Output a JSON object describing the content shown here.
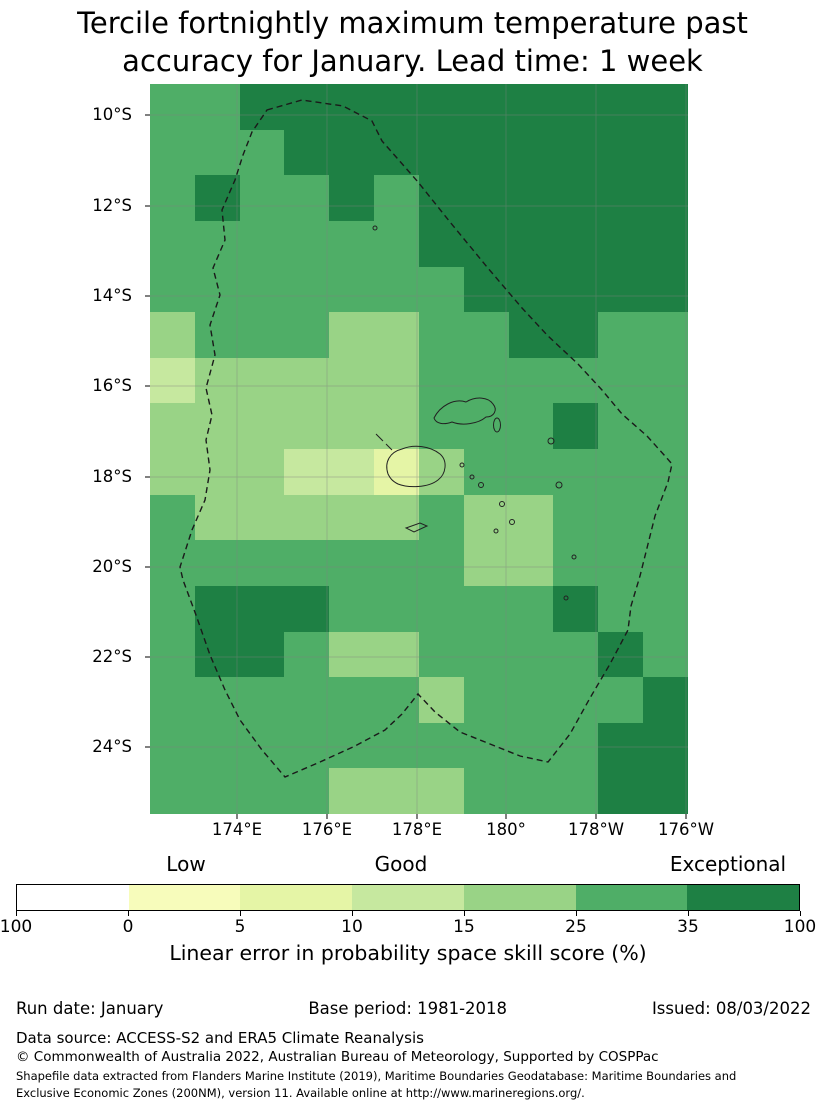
{
  "title": "Tercile fortnightly maximum temperature past accuracy for January. Lead time: 1 week",
  "map": {
    "lat_tick_labels": [
      "10°S",
      "12°S",
      "14°S",
      "16°S",
      "18°S",
      "20°S",
      "22°S",
      "24°S"
    ],
    "lon_tick_labels": [
      "174°E",
      "176°E",
      "178°E",
      "180°",
      "178°W",
      "176°W"
    ],
    "overlays": [
      "fiji-eez-dashed-boundary",
      "fiji-coastlines",
      "graticule-gridlines"
    ]
  },
  "colorbar": {
    "category_labels": [
      "Low",
      "Good",
      "Exceptional"
    ],
    "tick_labels": [
      "100",
      "0",
      "5",
      "10",
      "15",
      "25",
      "35",
      "100"
    ],
    "caption": "Linear error in probability space skill score (%)",
    "segment_colors": [
      "#ffffff",
      "#f7fcbb",
      "#e5f5a6",
      "#c6e89f",
      "#99d386",
      "#4fae67",
      "#1e8044"
    ]
  },
  "chart_data": {
    "type": "heatmap",
    "title": "Tercile fortnightly maximum temperature past accuracy for January. Lead time: 1 week",
    "colorbar_label": "Linear error in probability space skill score (%)",
    "skill_categories": [
      "Low",
      "Good",
      "Exceptional"
    ],
    "lon_cell_edges_deg_east": [
      172,
      173,
      174,
      175,
      176,
      177,
      178,
      179,
      180,
      181,
      182,
      183,
      184
    ],
    "lat_cell_edges_deg_south": [
      9.5,
      10.5,
      11.5,
      12.5,
      13.5,
      14.5,
      15.5,
      16.5,
      17.5,
      18.5,
      19.5,
      20.5,
      21.5,
      22.5,
      23.5,
      24.5,
      25.5
    ],
    "x_tick_labels": [
      "174°E",
      "176°E",
      "178°E",
      "180°",
      "178°W",
      "176°W"
    ],
    "y_tick_labels": [
      "10°S",
      "12°S",
      "14°S",
      "16°S",
      "18°S",
      "20°S",
      "22°S",
      "24°S"
    ],
    "value_bins_percent": [
      "<=0",
      "0-5",
      "5-10",
      "10-15",
      "15-25",
      "25-35",
      "35-100"
    ],
    "bin_colors": [
      "#ffffff",
      "#f7fcbb",
      "#e5f5a6",
      "#c6e89f",
      "#99d386",
      "#4fae67",
      "#1e8044"
    ],
    "grid_bin_index": [
      [
        5,
        5,
        6,
        6,
        6,
        6,
        6,
        6,
        6,
        6,
        6,
        6
      ],
      [
        5,
        5,
        5,
        6,
        6,
        6,
        6,
        6,
        6,
        6,
        6,
        6
      ],
      [
        5,
        6,
        5,
        5,
        6,
        5,
        6,
        6,
        6,
        6,
        6,
        6
      ],
      [
        5,
        5,
        5,
        5,
        5,
        5,
        6,
        6,
        6,
        6,
        6,
        6
      ],
      [
        5,
        5,
        5,
        5,
        5,
        5,
        5,
        6,
        6,
        6,
        6,
        6
      ],
      [
        4,
        5,
        5,
        5,
        4,
        4,
        5,
        5,
        6,
        6,
        5,
        5
      ],
      [
        3,
        4,
        4,
        4,
        4,
        4,
        5,
        5,
        5,
        5,
        5,
        5
      ],
      [
        4,
        4,
        4,
        4,
        4,
        4,
        5,
        5,
        5,
        6,
        5,
        5
      ],
      [
        4,
        4,
        4,
        3,
        3,
        2,
        4,
        5,
        5,
        5,
        5,
        5
      ],
      [
        5,
        4,
        4,
        4,
        4,
        4,
        5,
        4,
        4,
        5,
        5,
        5
      ],
      [
        5,
        5,
        5,
        5,
        5,
        5,
        5,
        4,
        4,
        5,
        5,
        5
      ],
      [
        5,
        6,
        6,
        6,
        5,
        5,
        5,
        5,
        5,
        6,
        5,
        5
      ],
      [
        5,
        6,
        6,
        5,
        4,
        4,
        5,
        5,
        5,
        5,
        6,
        5
      ],
      [
        5,
        5,
        5,
        5,
        5,
        5,
        4,
        5,
        5,
        5,
        5,
        6
      ],
      [
        5,
        5,
        5,
        5,
        5,
        5,
        5,
        5,
        5,
        5,
        6,
        6
      ],
      [
        5,
        5,
        5,
        5,
        4,
        4,
        4,
        5,
        5,
        5,
        6,
        6
      ]
    ]
  },
  "footer": {
    "run_date": "Run date: January",
    "base_period": "Base period: 1981-2018",
    "issued": "Issued: 08/03/2022",
    "data_source": "Data source: ACCESS-S2 and ERA5 Climate Reanalysis",
    "copyright": "© Commonwealth of Australia 2022, Australian Bureau of Meteorology, Supported by COSPPac",
    "shapefile_line1": "Shapefile data extracted from Flanders Marine Institute (2019), Maritime Boundaries Geodatabase: Maritime Boundaries and",
    "shapefile_line2": "Exclusive Economic Zones (200NM), version 11. Available online at http://www.marineregions.org/."
  }
}
